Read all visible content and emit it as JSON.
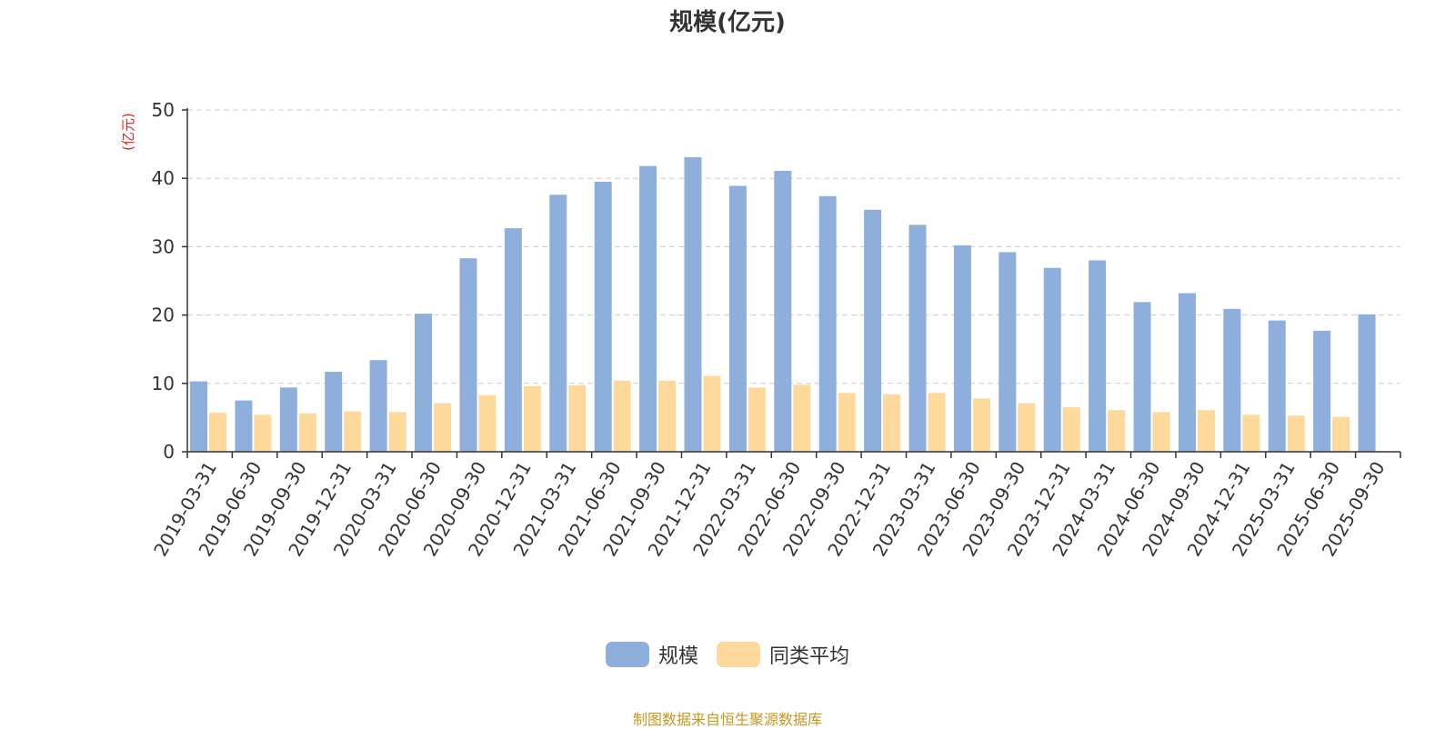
{
  "chart_data": {
    "type": "bar",
    "title": "规模(亿元)",
    "ylabel": "(亿元)",
    "xlabel": "",
    "ylim": [
      0,
      50
    ],
    "yticks": [
      0,
      10,
      20,
      30,
      40,
      50
    ],
    "grid": true,
    "legend_position": "bottom-center",
    "categories": [
      "2019-03-31",
      "2019-06-30",
      "2019-09-30",
      "2019-12-31",
      "2020-03-31",
      "2020-06-30",
      "2020-09-30",
      "2020-12-31",
      "2021-03-31",
      "2021-06-30",
      "2021-09-30",
      "2021-12-31",
      "2022-03-31",
      "2022-06-30",
      "2022-09-30",
      "2022-12-31",
      "2023-03-31",
      "2023-06-30",
      "2023-09-30",
      "2023-12-31",
      "2024-03-31",
      "2024-06-30",
      "2024-09-30",
      "2024-12-31",
      "2025-03-31",
      "2025-06-30",
      "2025-09-30"
    ],
    "series": [
      {
        "name": "规模",
        "color": "#8eaedc",
        "values": [
          10.3,
          7.5,
          9.4,
          11.7,
          13.4,
          20.2,
          28.3,
          32.7,
          37.6,
          39.5,
          41.8,
          43.1,
          38.9,
          41.1,
          37.4,
          35.4,
          33.2,
          30.2,
          29.2,
          26.9,
          28.0,
          21.9,
          23.2,
          20.9,
          19.2,
          17.7,
          20.1
        ]
      },
      {
        "name": "同类平均",
        "color": "#fdd99b",
        "values": [
          5.7,
          5.4,
          5.6,
          5.9,
          5.8,
          7.1,
          8.3,
          9.6,
          9.7,
          10.4,
          10.4,
          11.1,
          9.4,
          9.8,
          8.6,
          8.4,
          8.6,
          7.8,
          7.1,
          6.5,
          6.1,
          5.8,
          6.1,
          5.4,
          5.3,
          5.1,
          null
        ]
      }
    ]
  },
  "legend": {
    "items": [
      "规模",
      "同类平均"
    ]
  },
  "footer": {
    "source": "制图数据来自恒生聚源数据库"
  }
}
